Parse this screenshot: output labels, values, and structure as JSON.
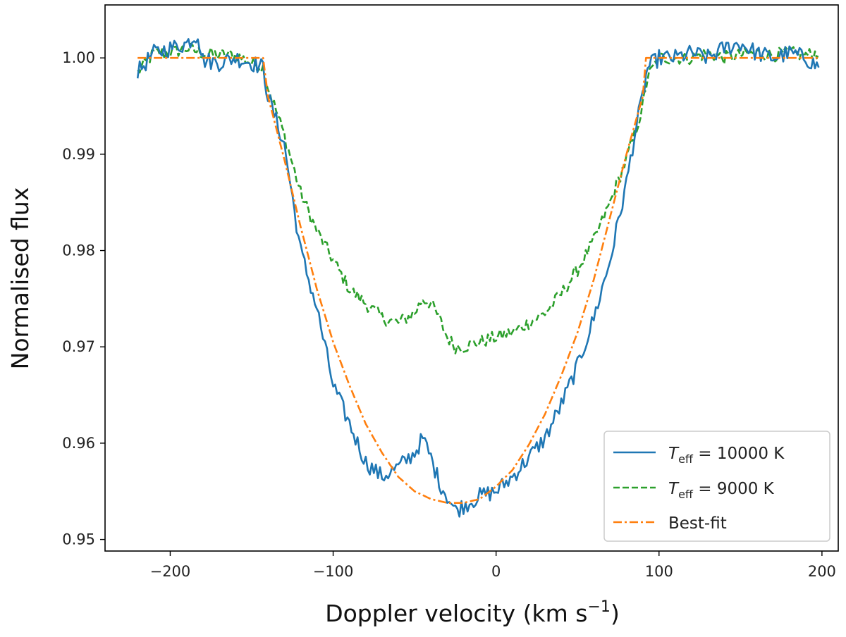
{
  "chart_data": {
    "type": "line",
    "title": "",
    "xlabel": "Doppler velocity (km s",
    "xlabel_sup": "−1",
    "xlabel_close": ")",
    "ylabel": "Normalised flux",
    "xlim": [
      -240,
      210
    ],
    "ylim": [
      0.9488,
      1.0055
    ],
    "xticks": [
      -200,
      -100,
      0,
      100,
      200
    ],
    "xtick_labels": [
      "−200",
      "−100",
      "0",
      "100",
      "200"
    ],
    "yticks": [
      0.95,
      0.96,
      0.97,
      0.98,
      0.99,
      1.0
    ],
    "ytick_labels": [
      "0.95",
      "0.96",
      "0.97",
      "0.98",
      "0.99",
      "1.00"
    ],
    "grid": false,
    "legend_position": "bottom-right",
    "series": [
      {
        "name": "10000 K",
        "legend_symbol": "T",
        "legend_sub": "eff",
        "legend_rest": " = 10000 K",
        "color": "#1f77b4",
        "style": "solid",
        "x": [
          -220,
          -210,
          -200,
          -190,
          -183,
          -180,
          -170,
          -160,
          -150,
          -143,
          -140,
          -130,
          -120,
          -110,
          -100,
          -90,
          -80,
          -70,
          -60,
          -50,
          -45,
          -40,
          -35,
          -30,
          -25,
          -20,
          -10,
          0,
          10,
          20,
          30,
          40,
          50,
          60,
          70,
          80,
          85,
          90,
          93,
          100,
          110,
          120,
          130,
          140,
          150,
          160,
          170,
          180,
          190,
          198
        ],
        "y": [
          0.9985,
          1.0005,
          1.001,
          1.0015,
          1.0025,
          0.9998,
          0.9995,
          1.0,
          0.9995,
          0.999,
          0.996,
          0.991,
          0.98,
          0.974,
          0.966,
          0.962,
          0.958,
          0.9565,
          0.9575,
          0.959,
          0.9605,
          0.9585,
          0.956,
          0.9545,
          0.953,
          0.9535,
          0.9545,
          0.955,
          0.9565,
          0.9585,
          0.9605,
          0.964,
          0.968,
          0.973,
          0.979,
          0.987,
          0.992,
          0.996,
          0.999,
          1.0,
          1.0,
          1.0005,
          1.0,
          1.001,
          1.0015,
          1.0005,
          1.0,
          1.0005,
          1.0,
          0.999
        ]
      },
      {
        "name": "9000 K",
        "legend_symbol": "T",
        "legend_sub": "eff",
        "legend_rest": " = 9000 K",
        "color": "#2ca02c",
        "style": "dashed",
        "x": [
          -220,
          -210,
          -200,
          -190,
          -180,
          -170,
          -160,
          -150,
          -143,
          -140,
          -130,
          -120,
          -110,
          -100,
          -90,
          -80,
          -70,
          -60,
          -50,
          -45,
          -40,
          -35,
          -30,
          -25,
          -20,
          -10,
          0,
          10,
          20,
          30,
          40,
          50,
          60,
          70,
          80,
          85,
          90,
          93,
          100,
          110,
          120,
          130,
          140,
          150,
          160,
          170,
          180,
          190,
          198
        ],
        "y": [
          0.9985,
          1.0005,
          1.0005,
          1.001,
          1.0005,
          1.0003,
          1.0003,
          0.9995,
          0.999,
          0.997,
          0.992,
          0.986,
          0.982,
          0.979,
          0.976,
          0.9745,
          0.973,
          0.9725,
          0.9735,
          0.975,
          0.9745,
          0.973,
          0.971,
          0.97,
          0.97,
          0.9705,
          0.971,
          0.9715,
          0.9725,
          0.9735,
          0.9755,
          0.978,
          0.981,
          0.985,
          0.9895,
          0.992,
          0.995,
          0.998,
          1.0,
          1.0,
          1.0,
          1.0005,
          1.0,
          1.0003,
          1.0005,
          1.0003,
          1.0005,
          1.0003,
          1.0005
        ]
      },
      {
        "name": "Best-fit",
        "legend_label": "Best-fit",
        "color": "#ff7f0e",
        "style": "dashdot",
        "x": [
          -220,
          -143,
          -140,
          -130,
          -120,
          -110,
          -100,
          -90,
          -80,
          -70,
          -60,
          -50,
          -40,
          -30,
          -20,
          -10,
          0,
          10,
          20,
          30,
          40,
          50,
          60,
          70,
          80,
          90,
          92,
          100,
          198
        ],
        "y": [
          1.0,
          1.0,
          0.996,
          0.9895,
          0.9825,
          0.976,
          0.9705,
          0.966,
          0.962,
          0.959,
          0.9565,
          0.955,
          0.9542,
          0.9538,
          0.9538,
          0.9542,
          0.9555,
          0.9572,
          0.9598,
          0.963,
          0.967,
          0.9715,
          0.977,
          0.9835,
          0.99,
          0.996,
          1.0,
          1.0,
          1.0
        ]
      }
    ]
  }
}
